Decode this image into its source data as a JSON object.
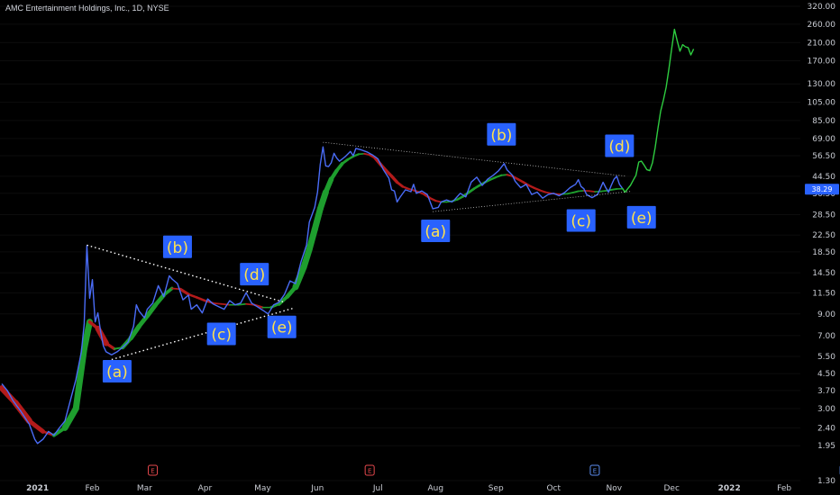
{
  "title": "AMC Entertainment Holdings, Inc., 1D, NYSE",
  "price_tag": "38.29",
  "earnings_markers": [
    {
      "letter": "E",
      "date": 55,
      "color": "#e5484d"
    },
    {
      "letter": "E",
      "date": 134,
      "color": "#e5484d"
    },
    {
      "letter": "E",
      "date": 216,
      "color": "#5b8def"
    },
    {
      "letter": "E",
      "date": 307,
      "color": "#5b8def"
    }
  ],
  "chart_data": {
    "type": "line",
    "title": "AMC Entertainment Holdings, Inc., 1D, NYSE",
    "y_scale": "log",
    "ylim": [
      1.3,
      320
    ],
    "y_ticks": [
      "320.00",
      "260.00",
      "210.00",
      "170.00",
      "130.00",
      "105.00",
      "85.00",
      "69.00",
      "56.50",
      "44.50",
      "36.50",
      "28.50",
      "22.50",
      "18.50",
      "14.50",
      "11.50",
      "9.00",
      "7.00",
      "5.50",
      "4.50",
      "3.70",
      "3.00",
      "2.40",
      "1.95",
      "1.30"
    ],
    "x_axis_unit": "trading days from 2020-12-14",
    "x_ticks": [
      {
        "label": "2021",
        "pos": 13,
        "bold": true
      },
      {
        "label": "Feb",
        "pos": 33
      },
      {
        "label": "Mar",
        "pos": 52
      },
      {
        "label": "Apr",
        "pos": 74
      },
      {
        "label": "May",
        "pos": 95
      },
      {
        "label": "Jun",
        "pos": 115
      },
      {
        "label": "Jul",
        "pos": 137
      },
      {
        "label": "Aug",
        "pos": 158
      },
      {
        "label": "Sep",
        "pos": 180
      },
      {
        "label": "Oct",
        "pos": 201
      },
      {
        "label": "Nov",
        "pos": 223
      },
      {
        "label": "Dec",
        "pos": 244
      },
      {
        "label": "2022",
        "pos": 265,
        "bold": true
      },
      {
        "label": "Feb",
        "pos": 285
      }
    ],
    "series": [
      {
        "color": "#4a6cf7",
        "points": [
          [
            0,
            4.0
          ],
          [
            2,
            3.7
          ],
          [
            4,
            3.3
          ],
          [
            7,
            2.9
          ],
          [
            10,
            2.5
          ],
          [
            12,
            2.1
          ],
          [
            13,
            2.0
          ],
          [
            15,
            2.1
          ],
          [
            17,
            2.3
          ],
          [
            19,
            2.2
          ],
          [
            21,
            2.4
          ],
          [
            23,
            2.6
          ],
          [
            25,
            3.3
          ],
          [
            27,
            4.2
          ],
          [
            29,
            5.8
          ],
          [
            30,
            8.0
          ],
          [
            31,
            19.9
          ],
          [
            32,
            10.8
          ],
          [
            33,
            13.4
          ],
          [
            34,
            8.2
          ],
          [
            35,
            9.1
          ],
          [
            36,
            7.3
          ],
          [
            37,
            6.2
          ],
          [
            38,
            5.8
          ],
          [
            40,
            5.6
          ],
          [
            42,
            5.8
          ],
          [
            44,
            6.1
          ],
          [
            46,
            6.5
          ],
          [
            48,
            7.8
          ],
          [
            49,
            10.0
          ],
          [
            50,
            9.3
          ],
          [
            52,
            8.6
          ],
          [
            53,
            9.5
          ],
          [
            55,
            10.2
          ],
          [
            57,
            12.5
          ],
          [
            59,
            11.0
          ],
          [
            61,
            14.0
          ],
          [
            62,
            13.5
          ],
          [
            64,
            12.8
          ],
          [
            66,
            10.6
          ],
          [
            68,
            11.2
          ],
          [
            69,
            9.5
          ],
          [
            71,
            10.0
          ],
          [
            73,
            9.1
          ],
          [
            75,
            10.7
          ],
          [
            77,
            10.1
          ],
          [
            79,
            9.8
          ],
          [
            81,
            9.5
          ],
          [
            83,
            10.5
          ],
          [
            85,
            10.0
          ],
          [
            87,
            10.2
          ],
          [
            89,
            11.5
          ],
          [
            91,
            10.2
          ],
          [
            93,
            9.8
          ],
          [
            95,
            9.4
          ],
          [
            97,
            9.0
          ],
          [
            99,
            10.0
          ],
          [
            101,
            10.3
          ],
          [
            103,
            11.3
          ],
          [
            105,
            13.2
          ],
          [
            107,
            12.8
          ],
          [
            109,
            16.5
          ],
          [
            111,
            20.0
          ],
          [
            112,
            26.1
          ],
          [
            114,
            31.0
          ],
          [
            115,
            37.0
          ],
          [
            116,
            51.0
          ],
          [
            117,
            62.6
          ],
          [
            118,
            50.2
          ],
          [
            119,
            49.8
          ],
          [
            120,
            52.0
          ],
          [
            121,
            58.1
          ],
          [
            122,
            55.0
          ],
          [
            123,
            53.0
          ],
          [
            125,
            55.8
          ],
          [
            127,
            59.3
          ],
          [
            128,
            56.5
          ],
          [
            129,
            61.5
          ],
          [
            131,
            60.4
          ],
          [
            133,
            59.0
          ],
          [
            135,
            57.0
          ],
          [
            137,
            54.5
          ],
          [
            139,
            48.0
          ],
          [
            141,
            43.5
          ],
          [
            142,
            38.0
          ],
          [
            143,
            37.5
          ],
          [
            144,
            33.0
          ],
          [
            145,
            34.8
          ],
          [
            147,
            38.0
          ],
          [
            149,
            37.2
          ],
          [
            150,
            40.5
          ],
          [
            151,
            36.5
          ],
          [
            153,
            37.5
          ],
          [
            155,
            36.0
          ],
          [
            157,
            30.5
          ],
          [
            159,
            31.0
          ],
          [
            160,
            33.0
          ],
          [
            162,
            33.8
          ],
          [
            164,
            33.0
          ],
          [
            165,
            34.0
          ],
          [
            167,
            36.5
          ],
          [
            169,
            35.0
          ],
          [
            171,
            41.6
          ],
          [
            173,
            44.0
          ],
          [
            175,
            40.0
          ],
          [
            177,
            43.0
          ],
          [
            179,
            45.0
          ],
          [
            181,
            47.5
          ],
          [
            183,
            51.5
          ],
          [
            184,
            48.0
          ],
          [
            185,
            46.5
          ],
          [
            186,
            45.0
          ],
          [
            187,
            42.0
          ],
          [
            189,
            39.0
          ],
          [
            191,
            40.5
          ],
          [
            193,
            36.0
          ],
          [
            195,
            37.0
          ],
          [
            197,
            34.5
          ],
          [
            199,
            36.0
          ],
          [
            201,
            36.5
          ],
          [
            203,
            35.5
          ],
          [
            205,
            36.8
          ],
          [
            207,
            39.0
          ],
          [
            209,
            40.5
          ],
          [
            210,
            42.8
          ],
          [
            211,
            39.5
          ],
          [
            212,
            38.5
          ],
          [
            213,
            36.0
          ],
          [
            215,
            34.7
          ],
          [
            217,
            36.0
          ],
          [
            218,
            38.5
          ],
          [
            219,
            41.5
          ],
          [
            220,
            39.0
          ],
          [
            221,
            37.0
          ],
          [
            222,
            40.0
          ],
          [
            223,
            43.0
          ],
          [
            224,
            44.5
          ],
          [
            225,
            40.5
          ],
          [
            226,
            38.8
          ]
        ]
      },
      {
        "color": "#2ecc40",
        "points": [
          [
            226,
            38.8
          ],
          [
            227,
            37.0
          ],
          [
            228,
            38.5
          ],
          [
            229,
            40.0
          ],
          [
            230,
            42.5
          ],
          [
            231,
            45.0
          ],
          [
            232,
            52.5
          ],
          [
            233,
            53.0
          ],
          [
            234,
            50.5
          ],
          [
            235,
            48.0
          ],
          [
            236,
            47.5
          ],
          [
            237,
            52.0
          ],
          [
            238,
            62.0
          ],
          [
            239,
            77.5
          ],
          [
            240,
            94.6
          ],
          [
            241,
            108.0
          ],
          [
            242,
            125.0
          ],
          [
            243,
            155.0
          ],
          [
            244,
            195.0
          ],
          [
            245,
            245.0
          ],
          [
            246,
            215.0
          ],
          [
            247,
            190.0
          ],
          [
            248,
            205.0
          ],
          [
            249,
            200.0
          ],
          [
            250,
            198.0
          ],
          [
            251,
            182.0
          ],
          [
            252,
            195.0
          ]
        ]
      }
    ],
    "ma_ribbon": [
      [
        0,
        3.8
      ],
      [
        5,
        3.2
      ],
      [
        10,
        2.6
      ],
      [
        15,
        2.3
      ],
      [
        19,
        2.2
      ],
      [
        23,
        2.4
      ],
      [
        27,
        3.0
      ],
      [
        30,
        6.0
      ],
      [
        32,
        8.2
      ],
      [
        35,
        7.6
      ],
      [
        38,
        6.4
      ],
      [
        41,
        6.0
      ],
      [
        44,
        6.1
      ],
      [
        47,
        6.8
      ],
      [
        50,
        7.8
      ],
      [
        53,
        8.8
      ],
      [
        56,
        10.0
      ],
      [
        59,
        11.2
      ],
      [
        62,
        12.1
      ],
      [
        65,
        12.0
      ],
      [
        68,
        11.3
      ],
      [
        71,
        10.9
      ],
      [
        74,
        10.5
      ],
      [
        77,
        10.2
      ],
      [
        80,
        10.1
      ],
      [
        83,
        10.0
      ],
      [
        86,
        10.0
      ],
      [
        89,
        10.1
      ],
      [
        92,
        10.0
      ],
      [
        95,
        9.7
      ],
      [
        98,
        9.7
      ],
      [
        101,
        10.1
      ],
      [
        104,
        11.0
      ],
      [
        107,
        12.3
      ],
      [
        110,
        15.5
      ],
      [
        112,
        19.0
      ],
      [
        114,
        24.0
      ],
      [
        116,
        30.5
      ],
      [
        118,
        37.0
      ],
      [
        120,
        43.0
      ],
      [
        122,
        47.5
      ],
      [
        124,
        51.5
      ],
      [
        126,
        54.0
      ],
      [
        128,
        56.0
      ],
      [
        130,
        57.5
      ],
      [
        132,
        57.8
      ],
      [
        134,
        57.0
      ],
      [
        136,
        55.0
      ],
      [
        138,
        51.0
      ],
      [
        140,
        47.5
      ],
      [
        142,
        44.5
      ],
      [
        144,
        41.5
      ],
      [
        146,
        39.5
      ],
      [
        148,
        38.5
      ],
      [
        150,
        37.8
      ],
      [
        152,
        37.0
      ],
      [
        154,
        36.0
      ],
      [
        156,
        34.5
      ],
      [
        158,
        33.5
      ],
      [
        160,
        33.0
      ],
      [
        162,
        33.0
      ],
      [
        164,
        33.3
      ],
      [
        166,
        34.0
      ],
      [
        168,
        35.2
      ],
      [
        170,
        36.8
      ],
      [
        172,
        38.5
      ],
      [
        174,
        40.0
      ],
      [
        176,
        41.5
      ],
      [
        178,
        42.8
      ],
      [
        180,
        44.0
      ],
      [
        182,
        45.0
      ],
      [
        184,
        45.3
      ],
      [
        186,
        44.5
      ],
      [
        188,
        43.0
      ],
      [
        190,
        41.5
      ],
      [
        192,
        40.0
      ],
      [
        194,
        38.8
      ],
      [
        196,
        37.8
      ],
      [
        198,
        37.0
      ],
      [
        200,
        36.5
      ],
      [
        202,
        36.2
      ],
      [
        204,
        36.1
      ],
      [
        206,
        36.3
      ],
      [
        208,
        36.8
      ],
      [
        210,
        37.4
      ],
      [
        212,
        37.6
      ],
      [
        214,
        37.5
      ],
      [
        216,
        37.2
      ],
      [
        218,
        37.3
      ],
      [
        220,
        37.6
      ],
      [
        222,
        38.0
      ],
      [
        224,
        38.4
      ],
      [
        226,
        38.5
      ]
    ],
    "trendlines": [
      {
        "color": "#ffffff",
        "points": [
          [
            31,
            20.0
          ],
          [
            103,
            10.3
          ]
        ]
      },
      {
        "color": "#ffffff",
        "points": [
          [
            40,
            5.3
          ],
          [
            106,
            9.6
          ]
        ]
      },
      {
        "color": "#ffffff",
        "points": [
          [
            117,
            66.0
          ],
          [
            227,
            44.6
          ]
        ]
      },
      {
        "color": "#ffffff",
        "points": [
          [
            157,
            29.5
          ],
          [
            229,
            37.3
          ]
        ]
      }
    ],
    "annotations": [
      {
        "text": "(a)",
        "at": [
          42,
          4.6
        ]
      },
      {
        "text": "(b)",
        "at": [
          64,
          19.5
        ]
      },
      {
        "text": "(c)",
        "at": [
          80,
          7.1
        ]
      },
      {
        "text": "(d)",
        "at": [
          92,
          14.2
        ]
      },
      {
        "text": "(e)",
        "at": [
          102,
          7.7
        ]
      },
      {
        "text": "(a)",
        "at": [
          158,
          23.5
        ]
      },
      {
        "text": "(b)",
        "at": [
          182,
          72.0
        ]
      },
      {
        "text": "(c)",
        "at": [
          211,
          26.5
        ]
      },
      {
        "text": "(d)",
        "at": [
          225,
          63.0
        ]
      },
      {
        "text": "(e)",
        "at": [
          233,
          27.5
        ]
      }
    ]
  }
}
